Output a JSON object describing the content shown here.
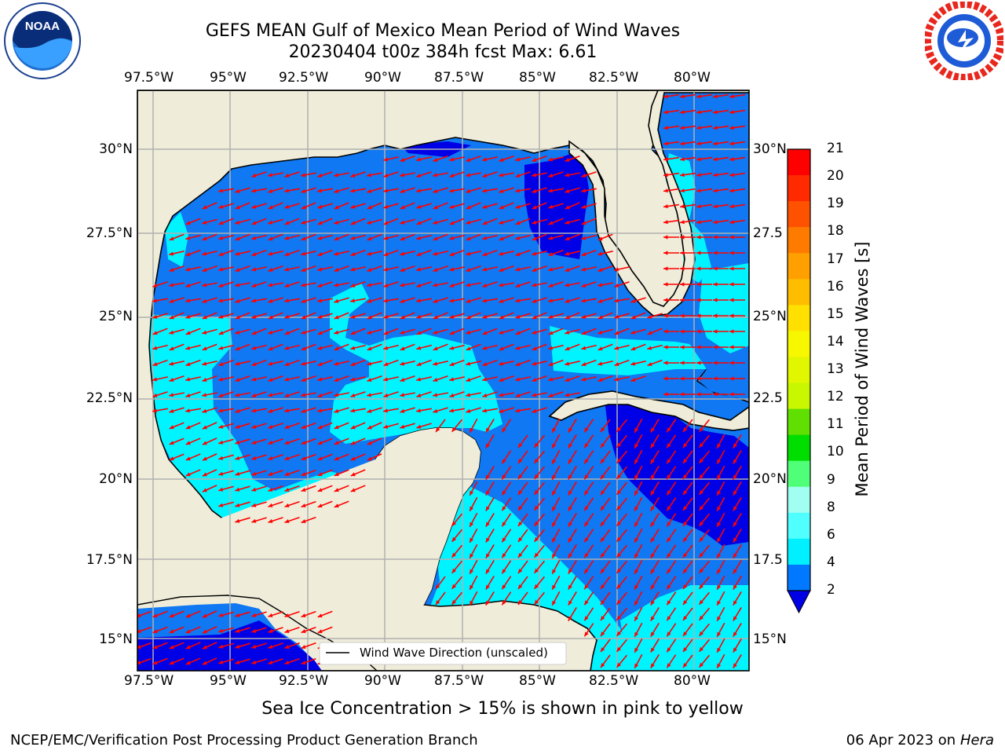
{
  "header": {
    "title": "GEFS MEAN Gulf of Mexico Mean Period of Wind Waves",
    "subtitle": "20230404 t00z 384h fcst   Max: 6.61"
  },
  "logos": {
    "left_name": "noaa-logo",
    "left_text": "NOAA",
    "right_name": "nws-logo",
    "right_text": "NATIONAL WEATHER SERVICE"
  },
  "map": {
    "lon_labels": [
      "97.5°W",
      "95°W",
      "92.5°W",
      "90°W",
      "87.5°W",
      "85°W",
      "82.5°W",
      "80°W"
    ],
    "lat_labels_left": [
      "30°N",
      "27.5°N",
      "25°N",
      "22.5°N",
      "20°N",
      "17.5°N",
      "15°N"
    ],
    "lat_labels_right": [
      "30°N",
      "27.5",
      "25°N",
      "22.5",
      "20°N",
      "17.5",
      "15°N"
    ],
    "legend_label": "Wind Wave Direction (unscaled)",
    "colors": {
      "land": "#efedda",
      "arrow": "#ff0000",
      "grid": "#b0b0b0"
    }
  },
  "colorbar": {
    "label": "Mean Period of Wind Waves [s]",
    "ticks": [
      "21",
      "20",
      "19",
      "18",
      "17",
      "16",
      "15",
      "14",
      "13",
      "12",
      "11",
      "10",
      "9",
      "8",
      "6",
      "4",
      "2"
    ],
    "colors": [
      "#ff0000",
      "#ff2a00",
      "#ff5200",
      "#ff7b00",
      "#ff9f00",
      "#ffbd00",
      "#ffe000",
      "#f7f700",
      "#e0f700",
      "#c8f700",
      "#60e000",
      "#00de00",
      "#50ff78",
      "#a0fff0",
      "#50ffff",
      "#00f0ff",
      "#0078ff"
    ],
    "extend_color": "#0000e6"
  },
  "footer": {
    "note": "Sea Ice Concentration > 15% is shown in pink to yellow",
    "left": "NCEP/EMC/Verification Post Processing Product Generation Branch",
    "right_date": "06 Apr 2023 on ",
    "right_host": "Hera"
  }
}
